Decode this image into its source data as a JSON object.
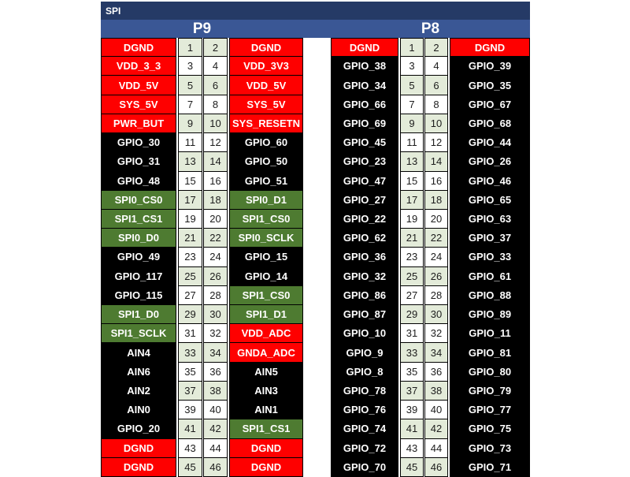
{
  "title": "SPI",
  "headers": {
    "left": "P9",
    "right": "P8"
  },
  "colors": {
    "title_bar": "#253A66",
    "header_bar": "#3A5795",
    "red": "#FE0000",
    "black": "#000000",
    "green": "#4E7B31",
    "pin_green": "#E3EBD9",
    "pin_white": "#FFFFFF"
  },
  "p9": {
    "name": "P9",
    "rows": [
      {
        "left": "DGND",
        "lpin": "1",
        "rpin": "2",
        "right": "DGND",
        "ltype": "red",
        "rtype": "red"
      },
      {
        "left": "VDD_3_3",
        "lpin": "3",
        "rpin": "4",
        "right": "VDD_3V3",
        "ltype": "red",
        "rtype": "red"
      },
      {
        "left": "VDD_5V",
        "lpin": "5",
        "rpin": "6",
        "right": "VDD_5V",
        "ltype": "red",
        "rtype": "red"
      },
      {
        "left": "SYS_5V",
        "lpin": "7",
        "rpin": "8",
        "right": "SYS_5V",
        "ltype": "red",
        "rtype": "red"
      },
      {
        "left": "PWR_BUT",
        "lpin": "9",
        "rpin": "10",
        "right": "SYS_RESETN",
        "ltype": "red",
        "rtype": "red"
      },
      {
        "left": "GPIO_30",
        "lpin": "11",
        "rpin": "12",
        "right": "GPIO_60",
        "ltype": "black",
        "rtype": "black"
      },
      {
        "left": "GPIO_31",
        "lpin": "13",
        "rpin": "14",
        "right": "GPIO_50",
        "ltype": "black",
        "rtype": "black"
      },
      {
        "left": "GPIO_48",
        "lpin": "15",
        "rpin": "16",
        "right": "GPIO_51",
        "ltype": "black",
        "rtype": "black"
      },
      {
        "left": "SPI0_CS0",
        "lpin": "17",
        "rpin": "18",
        "right": "SPI0_D1",
        "ltype": "green",
        "rtype": "green"
      },
      {
        "left": "SPI1_CS1",
        "lpin": "19",
        "rpin": "20",
        "right": "SPI1_CS0",
        "ltype": "green",
        "rtype": "green"
      },
      {
        "left": "SPI0_D0",
        "lpin": "21",
        "rpin": "22",
        "right": "SPI0_SCLK",
        "ltype": "green",
        "rtype": "green"
      },
      {
        "left": "GPIO_49",
        "lpin": "23",
        "rpin": "24",
        "right": "GPIO_15",
        "ltype": "black",
        "rtype": "black"
      },
      {
        "left": "GPIO_117",
        "lpin": "25",
        "rpin": "26",
        "right": "GPIO_14",
        "ltype": "black",
        "rtype": "black"
      },
      {
        "left": "GPIO_115",
        "lpin": "27",
        "rpin": "28",
        "right": "SPI1_CS0",
        "ltype": "black",
        "rtype": "green"
      },
      {
        "left": "SPI1_D0",
        "lpin": "29",
        "rpin": "30",
        "right": "SPI1_D1",
        "ltype": "green",
        "rtype": "green"
      },
      {
        "left": "SPI1_SCLK",
        "lpin": "31",
        "rpin": "32",
        "right": "VDD_ADC",
        "ltype": "green",
        "rtype": "red"
      },
      {
        "left": "AIN4",
        "lpin": "33",
        "rpin": "34",
        "right": "GNDA_ADC",
        "ltype": "black",
        "rtype": "red"
      },
      {
        "left": "AIN6",
        "lpin": "35",
        "rpin": "36",
        "right": "AIN5",
        "ltype": "black",
        "rtype": "black"
      },
      {
        "left": "AIN2",
        "lpin": "37",
        "rpin": "38",
        "right": "AIN3",
        "ltype": "black",
        "rtype": "black"
      },
      {
        "left": "AIN0",
        "lpin": "39",
        "rpin": "40",
        "right": "AIN1",
        "ltype": "black",
        "rtype": "black"
      },
      {
        "left": "GPIO_20",
        "lpin": "41",
        "rpin": "42",
        "right": "SPI1_CS1",
        "ltype": "black",
        "rtype": "green"
      },
      {
        "left": "DGND",
        "lpin": "43",
        "rpin": "44",
        "right": "DGND",
        "ltype": "red",
        "rtype": "red"
      },
      {
        "left": "DGND",
        "lpin": "45",
        "rpin": "46",
        "right": "DGND",
        "ltype": "red",
        "rtype": "red"
      }
    ]
  },
  "p8": {
    "name": "P8",
    "rows": [
      {
        "left": "DGND",
        "lpin": "1",
        "rpin": "2",
        "right": "DGND",
        "ltype": "red",
        "rtype": "red"
      },
      {
        "left": "GPIO_38",
        "lpin": "3",
        "rpin": "4",
        "right": "GPIO_39",
        "ltype": "black",
        "rtype": "black"
      },
      {
        "left": "GPIO_34",
        "lpin": "5",
        "rpin": "6",
        "right": "GPIO_35",
        "ltype": "black",
        "rtype": "black"
      },
      {
        "left": "GPIO_66",
        "lpin": "7",
        "rpin": "8",
        "right": "GPIO_67",
        "ltype": "black",
        "rtype": "black"
      },
      {
        "left": "GPIO_69",
        "lpin": "9",
        "rpin": "10",
        "right": "GPIO_68",
        "ltype": "black",
        "rtype": "black"
      },
      {
        "left": "GPIO_45",
        "lpin": "11",
        "rpin": "12",
        "right": "GPIO_44",
        "ltype": "black",
        "rtype": "black"
      },
      {
        "left": "GPIO_23",
        "lpin": "13",
        "rpin": "14",
        "right": "GPIO_26",
        "ltype": "black",
        "rtype": "black"
      },
      {
        "left": "GPIO_47",
        "lpin": "15",
        "rpin": "16",
        "right": "GPIO_46",
        "ltype": "black",
        "rtype": "black"
      },
      {
        "left": "GPIO_27",
        "lpin": "17",
        "rpin": "18",
        "right": "GPIO_65",
        "ltype": "black",
        "rtype": "black"
      },
      {
        "left": "GPIO_22",
        "lpin": "19",
        "rpin": "20",
        "right": "GPIO_63",
        "ltype": "black",
        "rtype": "black"
      },
      {
        "left": "GPIO_62",
        "lpin": "21",
        "rpin": "22",
        "right": "GPIO_37",
        "ltype": "black",
        "rtype": "black"
      },
      {
        "left": "GPIO_36",
        "lpin": "23",
        "rpin": "24",
        "right": "GPIO_33",
        "ltype": "black",
        "rtype": "black"
      },
      {
        "left": "GPIO_32",
        "lpin": "25",
        "rpin": "26",
        "right": "GPIO_61",
        "ltype": "black",
        "rtype": "black"
      },
      {
        "left": "GPIO_86",
        "lpin": "27",
        "rpin": "28",
        "right": "GPIO_88",
        "ltype": "black",
        "rtype": "black"
      },
      {
        "left": "GPIO_87",
        "lpin": "29",
        "rpin": "30",
        "right": "GPIO_89",
        "ltype": "black",
        "rtype": "black"
      },
      {
        "left": "GPIO_10",
        "lpin": "31",
        "rpin": "32",
        "right": "GPIO_11",
        "ltype": "black",
        "rtype": "black"
      },
      {
        "left": "GPIO_9",
        "lpin": "33",
        "rpin": "34",
        "right": "GPIO_81",
        "ltype": "black",
        "rtype": "black"
      },
      {
        "left": "GPIO_8",
        "lpin": "35",
        "rpin": "36",
        "right": "GPIO_80",
        "ltype": "black",
        "rtype": "black"
      },
      {
        "left": "GPIO_78",
        "lpin": "37",
        "rpin": "38",
        "right": "GPIO_79",
        "ltype": "black",
        "rtype": "black"
      },
      {
        "left": "GPIO_76",
        "lpin": "39",
        "rpin": "40",
        "right": "GPIO_77",
        "ltype": "black",
        "rtype": "black"
      },
      {
        "left": "GPIO_74",
        "lpin": "41",
        "rpin": "42",
        "right": "GPIO_75",
        "ltype": "black",
        "rtype": "black"
      },
      {
        "left": "GPIO_72",
        "lpin": "43",
        "rpin": "44",
        "right": "GPIO_73",
        "ltype": "black",
        "rtype": "black"
      },
      {
        "left": "GPIO_70",
        "lpin": "45",
        "rpin": "46",
        "right": "GPIO_71",
        "ltype": "black",
        "rtype": "black"
      }
    ]
  }
}
